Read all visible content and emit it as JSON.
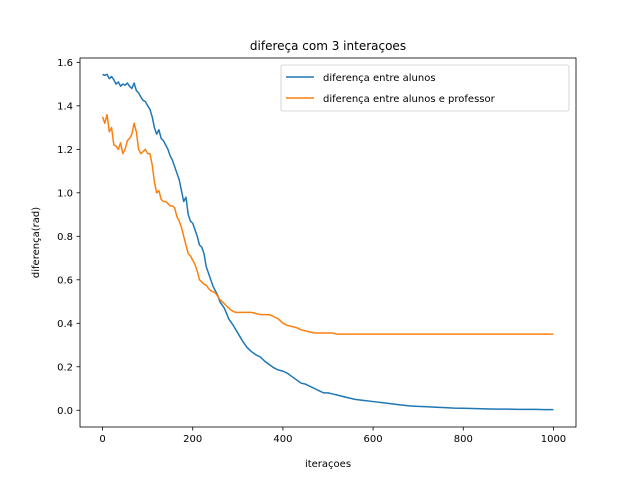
{
  "chart_data": {
    "type": "line",
    "title": "difereça com 3 interaçoes",
    "xlabel": "iteraçoes",
    "ylabel": "diferença(rad)",
    "xlim": [
      -50,
      1050
    ],
    "ylim": [
      -0.077,
      1.62
    ],
    "xticks": [
      0,
      200,
      400,
      600,
      800,
      1000
    ],
    "yticks": [
      0.0,
      0.2,
      0.4,
      0.6,
      0.8,
      1.0,
      1.2,
      1.4,
      1.6
    ],
    "xtick_labels": [
      "0",
      "200",
      "400",
      "600",
      "800",
      "1000"
    ],
    "ytick_labels": [
      "0.0",
      "0.2",
      "0.4",
      "0.6",
      "0.8",
      "1.0",
      "1.2",
      "1.4",
      "1.6"
    ],
    "legend_position": "top-right",
    "series": [
      {
        "name": "diferença entre alunos",
        "color": "#1f77b4",
        "x": [
          0,
          5,
          10,
          15,
          20,
          25,
          30,
          35,
          40,
          45,
          50,
          55,
          60,
          65,
          70,
          75,
          80,
          85,
          90,
          95,
          100,
          105,
          110,
          115,
          120,
          125,
          130,
          135,
          140,
          145,
          150,
          155,
          160,
          165,
          170,
          175,
          180,
          185,
          190,
          195,
          200,
          205,
          210,
          215,
          220,
          225,
          230,
          235,
          240,
          245,
          250,
          255,
          260,
          270,
          280,
          290,
          300,
          310,
          320,
          330,
          340,
          350,
          360,
          370,
          380,
          390,
          400,
          410,
          420,
          430,
          440,
          450,
          460,
          470,
          480,
          490,
          500,
          510,
          520,
          540,
          560,
          580,
          600,
          620,
          640,
          660,
          680,
          700,
          720,
          740,
          760,
          780,
          800,
          820,
          840,
          860,
          880,
          900,
          920,
          940,
          960,
          980,
          1000
        ],
        "y": [
          1.545,
          1.54,
          1.545,
          1.525,
          1.535,
          1.52,
          1.5,
          1.51,
          1.49,
          1.5,
          1.495,
          1.505,
          1.49,
          1.48,
          1.505,
          1.47,
          1.46,
          1.44,
          1.425,
          1.42,
          1.4,
          1.385,
          1.35,
          1.3,
          1.27,
          1.29,
          1.25,
          1.24,
          1.22,
          1.2,
          1.17,
          1.15,
          1.12,
          1.09,
          1.06,
          1.01,
          0.96,
          0.98,
          0.9,
          0.87,
          0.86,
          0.83,
          0.8,
          0.76,
          0.75,
          0.72,
          0.66,
          0.63,
          0.6,
          0.57,
          0.55,
          0.53,
          0.5,
          0.47,
          0.42,
          0.39,
          0.355,
          0.32,
          0.29,
          0.27,
          0.255,
          0.245,
          0.225,
          0.21,
          0.195,
          0.185,
          0.18,
          0.17,
          0.155,
          0.14,
          0.125,
          0.12,
          0.11,
          0.1,
          0.09,
          0.08,
          0.08,
          0.075,
          0.07,
          0.06,
          0.05,
          0.045,
          0.04,
          0.035,
          0.03,
          0.025,
          0.02,
          0.018,
          0.016,
          0.014,
          0.012,
          0.01,
          0.009,
          0.008,
          0.007,
          0.006,
          0.005,
          0.005,
          0.004,
          0.004,
          0.004,
          0.003,
          0.003
        ]
      },
      {
        "name": "diferença entre alunos e professor",
        "color": "#ff7f0e",
        "x": [
          0,
          5,
          10,
          15,
          20,
          25,
          30,
          35,
          40,
          45,
          50,
          55,
          60,
          65,
          70,
          75,
          80,
          85,
          90,
          95,
          100,
          105,
          110,
          115,
          120,
          125,
          130,
          135,
          140,
          145,
          150,
          155,
          160,
          165,
          170,
          175,
          180,
          185,
          190,
          195,
          200,
          205,
          210,
          215,
          220,
          225,
          230,
          235,
          240,
          245,
          250,
          255,
          260,
          265,
          270,
          275,
          280,
          285,
          290,
          295,
          300,
          310,
          320,
          330,
          340,
          350,
          360,
          370,
          380,
          390,
          400,
          410,
          420,
          430,
          440,
          450,
          460,
          470,
          480,
          490,
          500,
          510,
          520,
          540,
          560,
          580,
          600,
          650,
          700,
          750,
          800,
          850,
          900,
          950,
          1000
        ],
        "y": [
          1.35,
          1.32,
          1.36,
          1.28,
          1.3,
          1.22,
          1.215,
          1.2,
          1.23,
          1.18,
          1.2,
          1.24,
          1.25,
          1.27,
          1.32,
          1.28,
          1.2,
          1.18,
          1.19,
          1.2,
          1.18,
          1.18,
          1.13,
          1.05,
          1.0,
          1.01,
          0.97,
          0.96,
          0.96,
          0.95,
          0.94,
          0.94,
          0.93,
          0.89,
          0.87,
          0.84,
          0.8,
          0.76,
          0.72,
          0.71,
          0.69,
          0.67,
          0.64,
          0.6,
          0.59,
          0.58,
          0.575,
          0.56,
          0.55,
          0.545,
          0.54,
          0.525,
          0.51,
          0.5,
          0.49,
          0.48,
          0.47,
          0.46,
          0.455,
          0.45,
          0.45,
          0.45,
          0.45,
          0.45,
          0.445,
          0.44,
          0.44,
          0.44,
          0.43,
          0.42,
          0.4,
          0.39,
          0.385,
          0.38,
          0.37,
          0.365,
          0.36,
          0.355,
          0.355,
          0.355,
          0.355,
          0.355,
          0.35,
          0.35,
          0.35,
          0.35,
          0.35,
          0.35,
          0.35,
          0.35,
          0.35,
          0.35,
          0.35,
          0.35,
          0.35
        ]
      }
    ]
  }
}
